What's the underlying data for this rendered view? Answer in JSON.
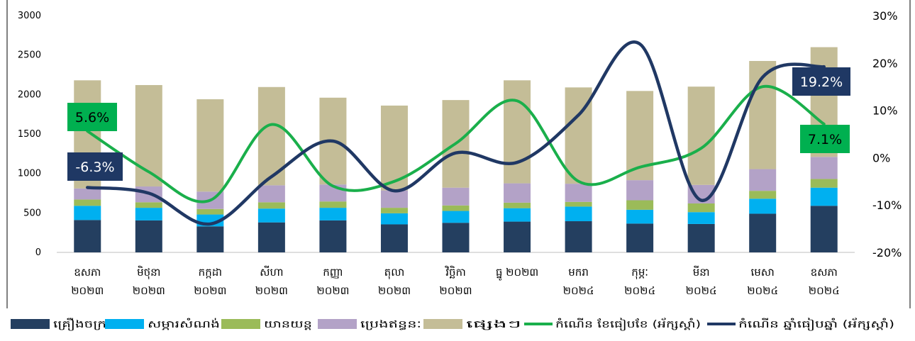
{
  "chart_data": {
    "type": "bar",
    "stacked": true,
    "categories": [
      [
        "ឧសភា",
        "២០២៣"
      ],
      [
        "មិថុនា",
        "២០២៣"
      ],
      [
        "កក្កដា",
        "២០២៣"
      ],
      [
        "សីហា",
        "២០២៣"
      ],
      [
        "កញ្ញា",
        "២០២៣"
      ],
      [
        "តុលា",
        "២០២៣"
      ],
      [
        "វិច្ឆិកា",
        "២០២៣"
      ],
      [
        "ធ្នូ ២០២៣"
      ],
      [
        "មករា",
        "២០២៤"
      ],
      [
        "កុម្ភៈ",
        "២០២៤"
      ],
      [
        "មីនា",
        "២០២៤"
      ],
      [
        "មេសា",
        "២០២៤"
      ],
      [
        "ឧសភា",
        "២០២៤"
      ]
    ],
    "series": [
      {
        "name": "គ្រឿងចក្រ",
        "color": "#243f60",
        "values": [
          410,
          405,
          330,
          380,
          405,
          355,
          375,
          390,
          395,
          365,
          360,
          490,
          590
        ]
      },
      {
        "name": "សម្ភារសំណង់",
        "color": "#00b0f0",
        "values": [
          180,
          160,
          150,
          175,
          160,
          140,
          150,
          170,
          185,
          175,
          150,
          190,
          230
        ]
      },
      {
        "name": "យានយន្ត",
        "color": "#9bbb59",
        "values": [
          80,
          70,
          70,
          80,
          80,
          70,
          70,
          70,
          60,
          120,
          110,
          100,
          110
        ]
      },
      {
        "name": "ប្រេងឥន្ធនៈ",
        "color": "#b3a2c7",
        "values": [
          140,
          200,
          220,
          215,
          215,
          220,
          225,
          245,
          230,
          255,
          235,
          275,
          280
        ]
      },
      {
        "name": "ផ្សេងៗ",
        "color": "#c4bd97",
        "values": [
          1370,
          1285,
          1170,
          1245,
          1100,
          1075,
          1110,
          1305,
          1220,
          1130,
          1245,
          1370,
          1390
        ]
      }
    ],
    "lines": [
      {
        "name": "កំណើន ខែធៀបខែ (អ័ក្សស្តាំ)",
        "color": "#1aaf4b",
        "axis": "right",
        "values": [
          5.6,
          -3.0,
          -9.0,
          7.0,
          -6.0,
          -5.0,
          3.0,
          12.0,
          -5.0,
          -2.0,
          2.0,
          15.0,
          7.1
        ]
      },
      {
        "name": "កំណើន ឆ្នាំធៀបឆ្នាំ (អ័ក្សស្តាំ)",
        "color": "#203864",
        "axis": "right",
        "values": [
          -6.3,
          -7.5,
          -14.0,
          -4.0,
          3.5,
          -7.0,
          1.0,
          -1.0,
          9.0,
          24.0,
          -9.0,
          17.0,
          19.2
        ]
      }
    ],
    "y_left": {
      "min": 0,
      "max": 3000,
      "ticks": [
        0,
        500,
        1000,
        1500,
        2000,
        2500,
        3000
      ]
    },
    "y_right": {
      "min": -20,
      "max": 30,
      "ticks": [
        "-20%",
        "-10%",
        "0%",
        "10%",
        "20%",
        "30%"
      ]
    },
    "annotations": [
      {
        "text": "5.6%",
        "line": 0,
        "index": 0,
        "style": "green"
      },
      {
        "text": "-6.3%",
        "line": 1,
        "index": 0,
        "style": "navy"
      },
      {
        "text": "19.2%",
        "line": 1,
        "index": 12,
        "style": "navy"
      },
      {
        "text": "7.1%",
        "line": 0,
        "index": 12,
        "style": "green"
      }
    ],
    "grid": false,
    "legend": "bottom"
  }
}
